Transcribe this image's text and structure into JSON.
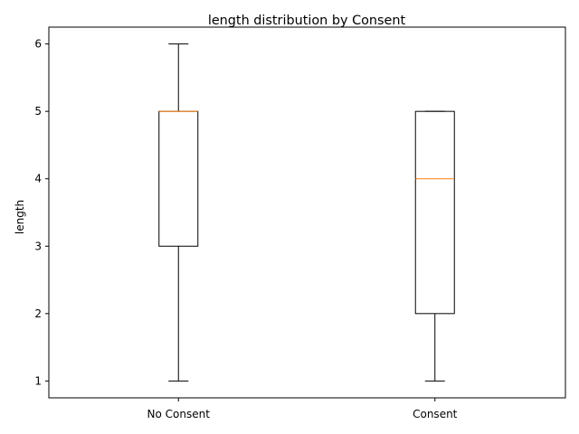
{
  "chart_data": {
    "type": "box",
    "title": "length distribution by Consent",
    "xlabel": "",
    "ylabel": "length",
    "categories": [
      "No Consent",
      "Consent"
    ],
    "boxes": [
      {
        "category": "No Consent",
        "whisker_low": 1,
        "q1": 3,
        "median": 5,
        "q3": 5,
        "whisker_high": 6
      },
      {
        "category": "Consent",
        "whisker_low": 1,
        "q1": 2,
        "median": 4,
        "q3": 5,
        "whisker_high": 5
      }
    ],
    "yticks": [
      1,
      2,
      3,
      4,
      5,
      6
    ],
    "ylim": [
      0.75,
      6.25
    ],
    "grid": false,
    "colors": {
      "box": "#000000",
      "median": "#ff7f0e"
    }
  }
}
